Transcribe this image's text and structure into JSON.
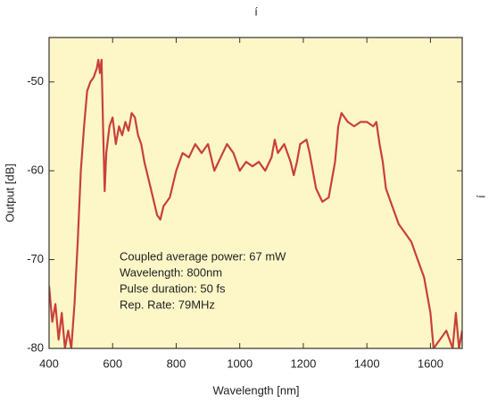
{
  "chart_data": {
    "type": "line",
    "title": "í",
    "y2_label": "í",
    "xlabel": "Wavelength [nm]",
    "ylabel": "Output [dB]",
    "annotations": [
      "Coupled average power: 67 mW",
      "Wavelength: 800nm",
      "Pulse duration: 50 fs",
      "Rep. Rate: 79MHz"
    ],
    "color": "#c9403a",
    "background": "#fdf7c8",
    "xlim": [
      400,
      1700
    ],
    "xticks": [
      400,
      600,
      800,
      1000,
      1200,
      1400,
      1600
    ],
    "ylim": [
      -80,
      -45
    ],
    "yticks": [
      -80,
      -70,
      -60,
      -50
    ],
    "x": [
      400,
      410,
      420,
      430,
      440,
      450,
      460,
      470,
      480,
      490,
      500,
      510,
      520,
      530,
      540,
      550,
      555,
      560,
      565,
      570,
      575,
      580,
      590,
      600,
      610,
      620,
      630,
      640,
      650,
      660,
      670,
      680,
      690,
      700,
      720,
      740,
      750,
      760,
      780,
      800,
      820,
      840,
      860,
      880,
      900,
      920,
      940,
      960,
      980,
      1000,
      1020,
      1040,
      1060,
      1080,
      1100,
      1110,
      1120,
      1140,
      1160,
      1170,
      1180,
      1190,
      1210,
      1220,
      1240,
      1260,
      1280,
      1300,
      1310,
      1320,
      1340,
      1360,
      1380,
      1400,
      1420,
      1430,
      1440,
      1450,
      1460,
      1480,
      1500,
      1520,
      1540,
      1560,
      1580,
      1600,
      1610,
      1630,
      1650,
      1670,
      1680,
      1690,
      1700
    ],
    "values": [
      -73,
      -77,
      -75,
      -79,
      -76,
      -80,
      -78,
      -80,
      -75,
      -68,
      -60,
      -55,
      -51,
      -50,
      -49.5,
      -48.5,
      -47.5,
      -49,
      -47.5,
      -55,
      -62.3,
      -58,
      -55,
      -54,
      -57,
      -55,
      -56,
      -54.5,
      -55.5,
      -53.5,
      -54,
      -56,
      -57,
      -59,
      -62,
      -65,
      -65.5,
      -64,
      -63,
      -60,
      -58,
      -58.5,
      -57,
      -58,
      -57,
      -60,
      -58.5,
      -57,
      -58,
      -60,
      -59,
      -59.5,
      -59,
      -60,
      -58.5,
      -56.5,
      -58,
      -57,
      -59,
      -60.5,
      -59,
      -57,
      -56.5,
      -58,
      -62,
      -63.5,
      -63,
      -59,
      -55,
      -53.5,
      -54.5,
      -55,
      -54.5,
      -54.5,
      -55,
      -54.5,
      -57,
      -59,
      -62,
      -64,
      -66,
      -67,
      -68,
      -70,
      -72,
      -76,
      -80,
      -79,
      -78,
      -80,
      -76,
      -80,
      -78
    ]
  }
}
